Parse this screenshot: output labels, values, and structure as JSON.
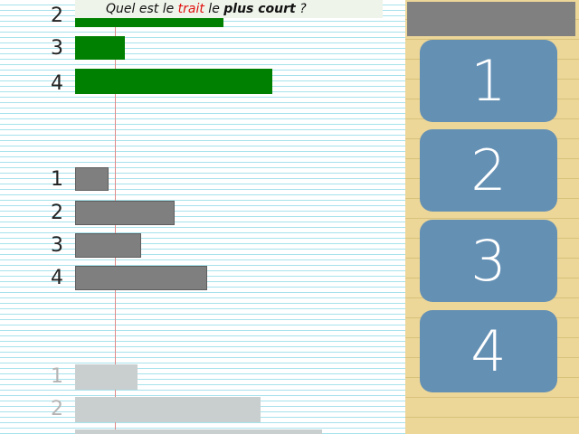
{
  "question": {
    "prefix": "Quel est le ",
    "keyword": "trait",
    "middle": " le ",
    "emphasis": "plus court",
    "suffix": " ?"
  },
  "groups": [
    {
      "style": "green",
      "rows": [
        {
          "label": "2",
          "length": 164
        },
        {
          "label": "3",
          "length": 55
        },
        {
          "label": "4",
          "length": 218
        }
      ]
    },
    {
      "style": "gray",
      "rows": [
        {
          "label": "1",
          "length": 37
        },
        {
          "label": "2",
          "length": 110
        },
        {
          "label": "3",
          "length": 73
        },
        {
          "label": "4",
          "length": 146
        }
      ]
    },
    {
      "style": "faded",
      "rows": [
        {
          "label": "1",
          "length": 69
        },
        {
          "label": "2",
          "length": 205
        },
        {
          "label": "",
          "length": 273
        }
      ]
    }
  ],
  "answers": [
    "1",
    "2",
    "3",
    "4"
  ],
  "colors": {
    "green_bar": "#008000",
    "gray_bar": "#7f7f7f",
    "faded_bar": "#c9cfcf",
    "button": "#6490b4",
    "sidebar": "#ecd698",
    "keyword": "#e01010"
  }
}
